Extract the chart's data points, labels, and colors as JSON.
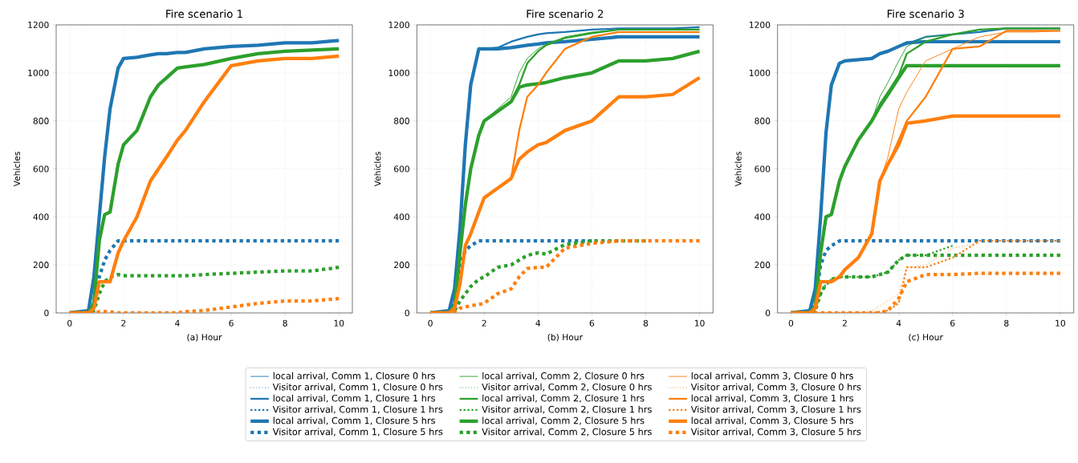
{
  "chart_data": [
    {
      "type": "line",
      "title": "Fire scenario 1",
      "xlabel": "(a) Hour",
      "ylabel": "Vehicles",
      "x": [
        0,
        0.7,
        0.9,
        1.1,
        1.3,
        1.5,
        1.8,
        2,
        2.5,
        3,
        3.3,
        3.6,
        4,
        4.3,
        5,
        6,
        7,
        8,
        9,
        10
      ],
      "xlim": [
        -0.5,
        10.5
      ],
      "xticks": [
        0,
        2,
        4,
        6,
        8,
        10
      ],
      "ylim": [
        0,
        1200
      ],
      "yticks": [
        0,
        200,
        400,
        600,
        800,
        1000,
        1200
      ],
      "grid": true,
      "series": [
        {
          "color": "#1f77b4",
          "line_style": "solid",
          "values": [
            null,
            null,
            null,
            null,
            null,
            null,
            null,
            null,
            null,
            null,
            null,
            null,
            null,
            null,
            null,
            null,
            null,
            null,
            null,
            null
          ]
        },
        {
          "color": "#1f77b4",
          "line_style": "dotted",
          "values": [
            null,
            null,
            null,
            null,
            null,
            null,
            null,
            null,
            null,
            null,
            null,
            null,
            null,
            null,
            null,
            null,
            null,
            null,
            null,
            null
          ]
        },
        {
          "color": "#1f77b4",
          "line_style": "solid",
          "values": [
            null,
            null,
            null,
            null,
            null,
            null,
            null,
            null,
            null,
            null,
            null,
            null,
            null,
            null,
            null,
            null,
            null,
            null,
            null,
            null
          ]
        },
        {
          "color": "#1f77b4",
          "line_style": "dotted",
          "values": [
            null,
            null,
            null,
            null,
            null,
            null,
            null,
            null,
            null,
            null,
            null,
            null,
            null,
            null,
            null,
            null,
            null,
            null,
            null,
            null
          ]
        },
        {
          "color": "#1f77b4",
          "line_style": "solid",
          "values": [
            0,
            10,
            150,
            400,
            650,
            850,
            1020,
            1060,
            1065,
            1075,
            1080,
            1080,
            1085,
            1085,
            1100,
            1110,
            1115,
            1125,
            1125,
            1135
          ]
        },
        {
          "color": "#1f77b4",
          "line_style": "dotted",
          "values": [
            0,
            0,
            40,
            150,
            220,
            260,
            300,
            300,
            300,
            300,
            300,
            300,
            300,
            300,
            300,
            300,
            300,
            300,
            300,
            300
          ]
        },
        {
          "color": "#2ca02c",
          "line_style": "solid",
          "values": [
            null,
            null,
            null,
            null,
            null,
            null,
            null,
            null,
            null,
            null,
            null,
            null,
            null,
            null,
            null,
            null,
            null,
            null,
            null,
            null
          ]
        },
        {
          "color": "#2ca02c",
          "line_style": "dotted",
          "values": [
            null,
            null,
            null,
            null,
            null,
            null,
            null,
            null,
            null,
            null,
            null,
            null,
            null,
            null,
            null,
            null,
            null,
            null,
            null,
            null
          ]
        },
        {
          "color": "#2ca02c",
          "line_style": "solid",
          "values": [
            null,
            null,
            null,
            null,
            null,
            null,
            null,
            null,
            null,
            null,
            null,
            null,
            null,
            null,
            null,
            null,
            null,
            null,
            null,
            null
          ]
        },
        {
          "color": "#2ca02c",
          "line_style": "dotted",
          "values": [
            null,
            null,
            null,
            null,
            null,
            null,
            null,
            null,
            null,
            null,
            null,
            null,
            null,
            null,
            null,
            null,
            null,
            null,
            null,
            null
          ]
        },
        {
          "color": "#2ca02c",
          "line_style": "solid",
          "values": [
            0,
            0,
            40,
            300,
            410,
            420,
            620,
            700,
            760,
            900,
            950,
            980,
            1020,
            1025,
            1035,
            1060,
            1080,
            1090,
            1095,
            1100
          ]
        },
        {
          "color": "#2ca02c",
          "line_style": "dotted",
          "values": [
            0,
            0,
            10,
            80,
            130,
            150,
            160,
            155,
            155,
            155,
            155,
            155,
            155,
            155,
            160,
            165,
            170,
            175,
            175,
            190
          ]
        },
        {
          "color": "#ff7f0e",
          "line_style": "solid",
          "values": [
            null,
            null,
            null,
            null,
            null,
            null,
            null,
            null,
            null,
            null,
            null,
            null,
            null,
            null,
            null,
            null,
            null,
            null,
            null,
            null
          ]
        },
        {
          "color": "#ff7f0e",
          "line_style": "dotted",
          "values": [
            null,
            null,
            null,
            null,
            null,
            null,
            null,
            null,
            null,
            null,
            null,
            null,
            null,
            null,
            null,
            null,
            null,
            null,
            null,
            null
          ]
        },
        {
          "color": "#ff7f0e",
          "line_style": "solid",
          "values": [
            null,
            null,
            null,
            null,
            null,
            null,
            null,
            null,
            null,
            null,
            null,
            null,
            null,
            null,
            null,
            null,
            null,
            null,
            null,
            null
          ]
        },
        {
          "color": "#ff7f0e",
          "line_style": "dotted",
          "values": [
            null,
            null,
            null,
            null,
            null,
            null,
            null,
            null,
            null,
            null,
            null,
            null,
            null,
            null,
            null,
            null,
            null,
            null,
            null,
            null
          ]
        },
        {
          "color": "#ff7f0e",
          "line_style": "solid",
          "values": [
            0,
            0,
            20,
            130,
            130,
            130,
            250,
            300,
            400,
            550,
            600,
            650,
            720,
            760,
            880,
            1030,
            1050,
            1060,
            1060,
            1070
          ]
        },
        {
          "color": "#ff7f0e",
          "line_style": "dotted",
          "values": [
            0,
            0,
            0,
            5,
            5,
            5,
            0,
            0,
            0,
            0,
            0,
            0,
            0,
            5,
            10,
            25,
            40,
            50,
            50,
            60
          ]
        }
      ]
    },
    {
      "type": "line",
      "title": "Fire scenario 2",
      "xlabel": "(b) Hour",
      "ylabel": "Vehicles",
      "x": [
        0,
        0.7,
        0.9,
        1.1,
        1.3,
        1.5,
        1.8,
        2,
        2.5,
        3,
        3.3,
        3.6,
        4,
        4.3,
        5,
        6,
        7,
        8,
        9,
        10
      ],
      "xlim": [
        -0.5,
        10.5
      ],
      "xticks": [
        0,
        2,
        4,
        6,
        8,
        10
      ],
      "ylim": [
        0,
        1200
      ],
      "yticks": [
        0,
        200,
        400,
        600,
        800,
        1000,
        1200
      ],
      "grid": true,
      "legend": "bottom",
      "series": [
        {
          "name": "local arrival, Comm 1, Closure 0 hrs",
          "color": "#1f77b4",
          "line_style": "solid",
          "values": [
            null,
            null,
            null,
            null,
            null,
            null,
            null,
            null,
            null,
            null,
            null,
            null,
            null,
            null,
            null,
            null,
            null,
            null,
            null,
            null
          ]
        },
        {
          "name": "Visitor arrival, Comm 1, Closure 0 hrs",
          "color": "#1f77b4",
          "line_style": "dotted",
          "values": [
            null,
            null,
            null,
            null,
            null,
            null,
            null,
            null,
            null,
            null,
            null,
            null,
            null,
            null,
            null,
            null,
            null,
            null,
            null,
            null
          ]
        },
        {
          "name": "local arrival, Comm 1, Closure 1 hrs",
          "color": "#1f77b4",
          "line_style": "solid",
          "values": [
            0,
            10,
            100,
            350,
            700,
            950,
            1100,
            1100,
            1105,
            1130,
            1140,
            1150,
            1160,
            1165,
            1170,
            1180,
            1185,
            1185,
            1185,
            1190
          ]
        },
        {
          "name": "Visitor arrival, Comm 1, Closure 1 hrs",
          "color": "#1f77b4",
          "line_style": "dotted",
          "values": [
            null,
            null,
            null,
            null,
            null,
            null,
            null,
            null,
            null,
            null,
            null,
            null,
            null,
            null,
            null,
            null,
            null,
            null,
            null,
            null
          ]
        },
        {
          "name": "local arrival, Comm 1, Closure 5 hrs",
          "color": "#1f77b4",
          "line_style": "solid",
          "values": [
            0,
            10,
            100,
            350,
            700,
            950,
            1100,
            1100,
            1100,
            1105,
            1110,
            1115,
            1120,
            1125,
            1130,
            1140,
            1150,
            1150,
            1150,
            1150
          ]
        },
        {
          "name": "Visitor arrival, Comm 1, Closure 5 hrs",
          "color": "#1f77b4",
          "line_style": "dotted",
          "values": [
            0,
            0,
            40,
            200,
            260,
            280,
            300,
            300,
            300,
            300,
            300,
            300,
            300,
            300,
            300,
            300,
            null,
            null,
            null,
            null
          ]
        },
        {
          "name": "local arrival, Comm 2, Closure 0 hrs",
          "color": "#2ca02c",
          "line_style": "solid",
          "values": [
            0,
            0,
            30,
            250,
            450,
            600,
            740,
            800,
            850,
            900,
            1000,
            1060,
            1100,
            1120,
            1150,
            1170,
            1180,
            1180,
            1180,
            1180
          ]
        },
        {
          "name": "Visitor arrival, Comm 2, Closure 0 hrs",
          "color": "#2ca02c",
          "line_style": "dotted",
          "values": [
            null,
            null,
            null,
            null,
            null,
            null,
            null,
            null,
            null,
            null,
            null,
            null,
            null,
            null,
            null,
            null,
            null,
            null,
            null,
            null
          ]
        },
        {
          "name": "local arrival, Comm 2, Closure 1 hrs",
          "color": "#2ca02c",
          "line_style": "solid",
          "values": [
            0,
            0,
            30,
            250,
            450,
            600,
            740,
            800,
            840,
            880,
            950,
            1040,
            1090,
            1115,
            1145,
            1165,
            1180,
            1180,
            1180,
            1180
          ]
        },
        {
          "name": "Visitor arrival, Comm 2, Closure 1 hrs",
          "color": "#2ca02c",
          "line_style": "dotted",
          "values": [
            null,
            null,
            null,
            null,
            null,
            null,
            null,
            null,
            null,
            null,
            null,
            null,
            null,
            null,
            null,
            null,
            null,
            null,
            null,
            null
          ]
        },
        {
          "name": "local arrival, Comm 2, Closure 5 hrs",
          "color": "#2ca02c",
          "line_style": "solid",
          "values": [
            0,
            0,
            30,
            250,
            450,
            600,
            740,
            800,
            840,
            880,
            940,
            950,
            955,
            960,
            980,
            1000,
            1050,
            1050,
            1060,
            1090
          ]
        },
        {
          "name": "Visitor arrival, Comm 2, Closure 5 hrs",
          "color": "#2ca02c",
          "line_style": "dotted",
          "values": [
            0,
            0,
            10,
            50,
            80,
            110,
            140,
            150,
            190,
            200,
            220,
            240,
            250,
            245,
            285,
            300,
            300,
            300,
            null,
            null
          ]
        },
        {
          "name": "local arrival, Comm 3, Closure 0 hrs",
          "color": "#ff7f0e",
          "line_style": "solid",
          "values": [
            null,
            null,
            null,
            null,
            null,
            null,
            null,
            null,
            null,
            null,
            null,
            null,
            null,
            null,
            null,
            null,
            null,
            null,
            null,
            null
          ]
        },
        {
          "name": "Visitor arrival, Comm 3, Closure 0 hrs",
          "color": "#ff7f0e",
          "line_style": "dotted",
          "values": [
            null,
            null,
            null,
            null,
            null,
            null,
            null,
            null,
            null,
            null,
            null,
            null,
            null,
            null,
            null,
            null,
            null,
            null,
            null,
            null
          ]
        },
        {
          "name": "local arrival, Comm 3, Closure 1 hrs",
          "color": "#ff7f0e",
          "line_style": "solid",
          "values": [
            0,
            0,
            20,
            120,
            280,
            330,
            420,
            480,
            520,
            560,
            760,
            900,
            950,
            1000,
            1100,
            1150,
            1170,
            1170,
            1170,
            1170
          ]
        },
        {
          "name": "Visitor arrival, Comm 3, Closure 1 hrs",
          "color": "#ff7f0e",
          "line_style": "dotted",
          "values": [
            null,
            null,
            null,
            null,
            null,
            null,
            null,
            null,
            null,
            null,
            null,
            null,
            null,
            null,
            null,
            null,
            null,
            null,
            null,
            null
          ]
        },
        {
          "name": "local arrival, Comm 3, Closure 5 hrs",
          "color": "#ff7f0e",
          "line_style": "solid",
          "values": [
            0,
            0,
            20,
            120,
            280,
            330,
            420,
            480,
            520,
            560,
            640,
            670,
            700,
            710,
            760,
            800,
            900,
            900,
            910,
            980
          ]
        },
        {
          "name": "Visitor arrival, Comm 3, Closure 5 hrs",
          "color": "#ff7f0e",
          "line_style": "dotted",
          "values": [
            0,
            0,
            5,
            20,
            25,
            30,
            35,
            40,
            80,
            100,
            150,
            185,
            190,
            190,
            270,
            290,
            300,
            300,
            300,
            300
          ]
        }
      ]
    },
    {
      "type": "line",
      "title": "Fire scenario 3",
      "xlabel": "(c) Hour",
      "ylabel": "Vehicles",
      "x": [
        0,
        0.7,
        0.9,
        1.1,
        1.3,
        1.5,
        1.8,
        2,
        2.5,
        3,
        3.3,
        3.6,
        4,
        4.3,
        5,
        6,
        7,
        8,
        9,
        10
      ],
      "xlim": [
        -0.5,
        10.5
      ],
      "xticks": [
        0,
        2,
        4,
        6,
        8,
        10
      ],
      "ylim": [
        0,
        1200
      ],
      "yticks": [
        0,
        200,
        400,
        600,
        800,
        1000,
        1200
      ],
      "grid": true,
      "series": [
        {
          "color": "#1f77b4",
          "line_style": "solid",
          "values": [
            null,
            null,
            null,
            null,
            null,
            null,
            null,
            null,
            null,
            null,
            null,
            null,
            null,
            null,
            null,
            null,
            null,
            null,
            null,
            null
          ]
        },
        {
          "color": "#1f77b4",
          "line_style": "dotted",
          "values": [
            null,
            null,
            null,
            null,
            null,
            null,
            null,
            null,
            null,
            null,
            null,
            null,
            null,
            null,
            null,
            null,
            null,
            null,
            null,
            null
          ]
        },
        {
          "color": "#1f77b4",
          "line_style": "solid",
          "values": [
            0,
            10,
            100,
            400,
            750,
            950,
            1040,
            1050,
            1055,
            1060,
            1080,
            1090,
            1110,
            1120,
            1150,
            1160,
            1170,
            1185,
            1185,
            1185
          ]
        },
        {
          "color": "#1f77b4",
          "line_style": "dotted",
          "values": [
            null,
            null,
            null,
            null,
            null,
            null,
            null,
            null,
            null,
            null,
            null,
            null,
            null,
            null,
            null,
            null,
            null,
            null,
            null,
            null
          ]
        },
        {
          "color": "#1f77b4",
          "line_style": "solid",
          "values": [
            0,
            10,
            100,
            400,
            750,
            950,
            1040,
            1050,
            1055,
            1060,
            1080,
            1090,
            1110,
            1125,
            1130,
            1130,
            1130,
            1130,
            1130,
            1130
          ]
        },
        {
          "color": "#1f77b4",
          "line_style": "dotted",
          "values": [
            0,
            0,
            40,
            200,
            260,
            280,
            300,
            300,
            300,
            300,
            300,
            300,
            300,
            300,
            300,
            300,
            300,
            300,
            300,
            300
          ]
        },
        {
          "color": "#2ca02c",
          "line_style": "solid",
          "values": [
            0,
            0,
            30,
            250,
            400,
            410,
            550,
            610,
            720,
            800,
            900,
            960,
            1050,
            1110,
            1150,
            1160,
            1180,
            1185,
            1185,
            1185
          ]
        },
        {
          "color": "#2ca02c",
          "line_style": "dotted",
          "values": [
            null,
            null,
            null,
            null,
            null,
            null,
            null,
            null,
            null,
            null,
            null,
            null,
            null,
            null,
            null,
            null,
            null,
            null,
            null,
            null
          ]
        },
        {
          "color": "#2ca02c",
          "line_style": "solid",
          "values": [
            0,
            0,
            30,
            250,
            400,
            410,
            550,
            610,
            720,
            800,
            870,
            920,
            990,
            1080,
            1130,
            1160,
            1180,
            1185,
            1185,
            1185
          ]
        },
        {
          "color": "#2ca02c",
          "line_style": "dotted",
          "values": [
            0,
            0,
            10,
            80,
            120,
            140,
            150,
            150,
            150,
            150,
            160,
            170,
            220,
            240,
            240,
            280,
            null,
            null,
            null,
            null
          ]
        },
        {
          "color": "#2ca02c",
          "line_style": "solid",
          "values": [
            0,
            0,
            30,
            250,
            400,
            410,
            550,
            610,
            720,
            800,
            860,
            910,
            980,
            1030,
            1030,
            1030,
            1030,
            1030,
            1030,
            1030
          ]
        },
        {
          "color": "#2ca02c",
          "line_style": "dotted",
          "values": [
            0,
            0,
            10,
            80,
            120,
            140,
            150,
            150,
            150,
            150,
            160,
            170,
            220,
            240,
            240,
            240,
            240,
            240,
            240,
            240
          ]
        },
        {
          "color": "#ff7f0e",
          "line_style": "solid",
          "values": [
            0,
            0,
            20,
            130,
            130,
            130,
            150,
            180,
            230,
            330,
            550,
            650,
            850,
            920,
            1050,
            1100,
            1150,
            1170,
            1170,
            1175
          ]
        },
        {
          "color": "#ff7f0e",
          "line_style": "dotted",
          "values": [
            0,
            0,
            0,
            0,
            0,
            0,
            0,
            0,
            0,
            10,
            30,
            50,
            80,
            190,
            200,
            270,
            290,
            null,
            null,
            null
          ]
        },
        {
          "color": "#ff7f0e",
          "line_style": "solid",
          "values": [
            0,
            0,
            20,
            130,
            130,
            130,
            150,
            180,
            230,
            330,
            550,
            620,
            720,
            800,
            900,
            1100,
            1110,
            1175,
            1175,
            1175
          ]
        },
        {
          "color": "#ff7f0e",
          "line_style": "dotted",
          "values": [
            0,
            0,
            0,
            0,
            0,
            0,
            0,
            0,
            0,
            0,
            5,
            10,
            40,
            190,
            190,
            230,
            300,
            300,
            300,
            300
          ]
        },
        {
          "color": "#ff7f0e",
          "line_style": "solid",
          "values": [
            0,
            0,
            20,
            130,
            130,
            130,
            150,
            180,
            230,
            330,
            550,
            620,
            700,
            790,
            800,
            820,
            820,
            820,
            820,
            820
          ]
        },
        {
          "color": "#ff7f0e",
          "line_style": "dotted",
          "values": [
            0,
            0,
            0,
            0,
            0,
            0,
            0,
            0,
            0,
            0,
            0,
            10,
            60,
            130,
            160,
            160,
            165,
            165,
            165,
            165
          ]
        }
      ]
    }
  ]
}
